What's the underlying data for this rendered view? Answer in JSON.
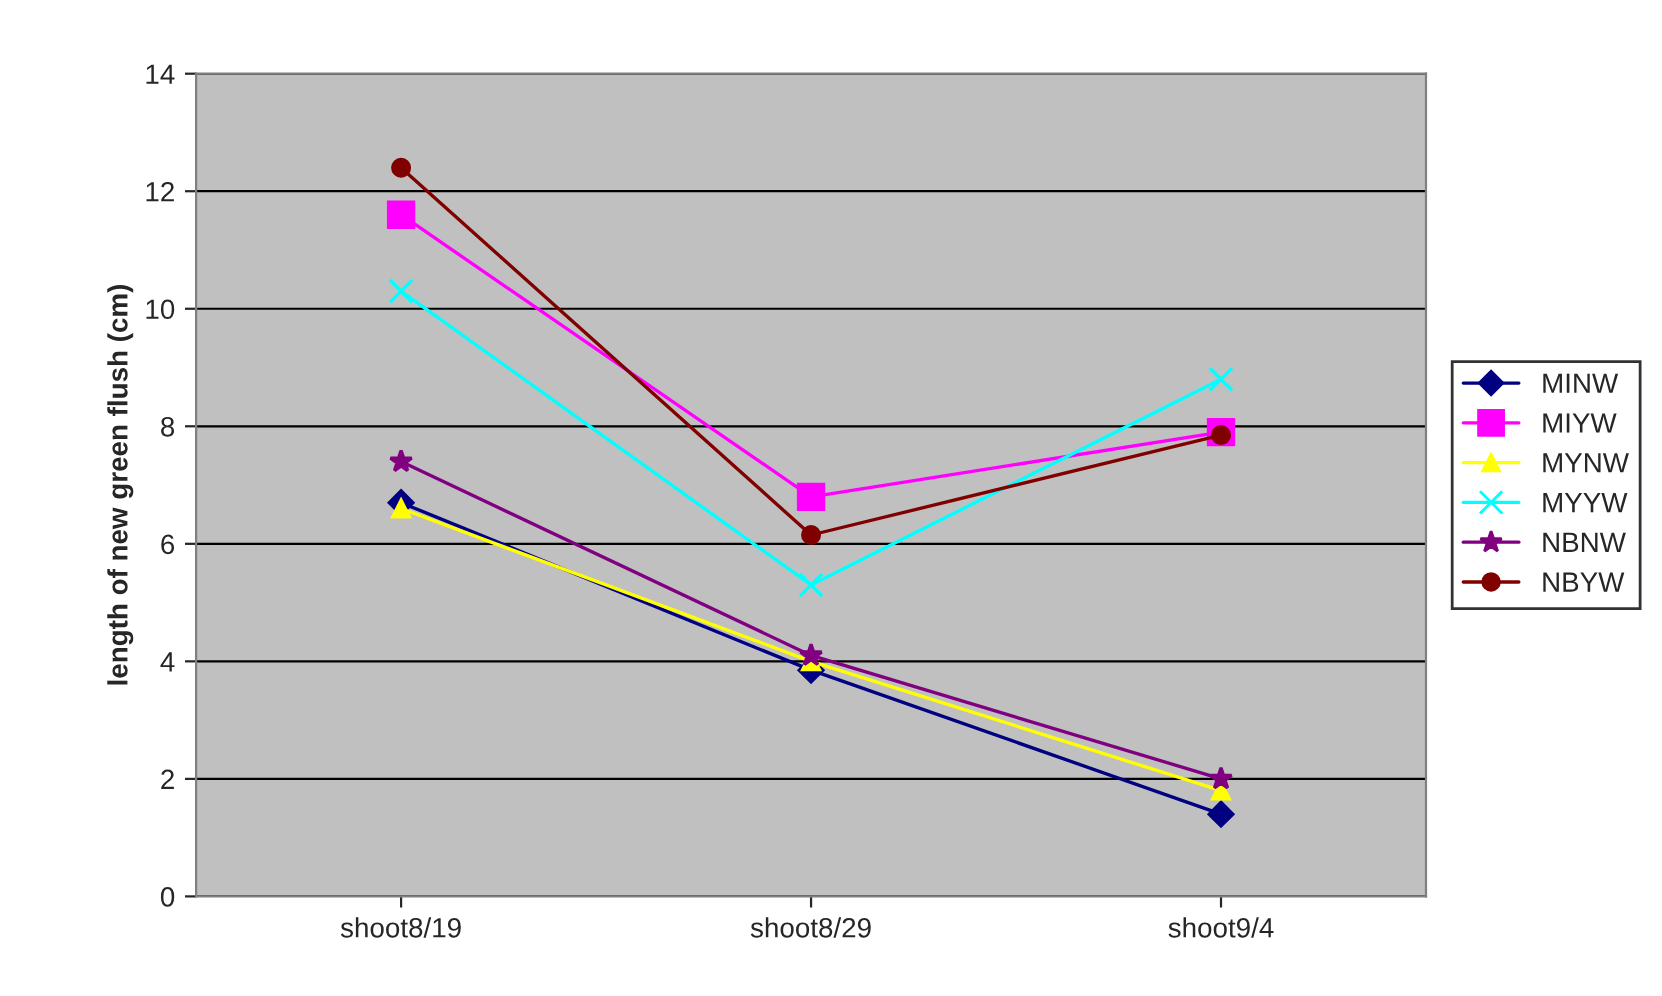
{
  "chart_data": {
    "type": "line",
    "ylabel": "length of new green flush (cm)",
    "categories": [
      "shoot8/19",
      "shoot8/29",
      "shoot9/4"
    ],
    "ylim": [
      0,
      14
    ],
    "yticks": [
      0,
      2,
      4,
      6,
      8,
      10,
      12,
      14
    ],
    "grid": "y",
    "legend": "right",
    "series": [
      {
        "name": "MINW",
        "color": "#000080",
        "marker": "diamond",
        "values": [
          6.7,
          3.85,
          1.4
        ]
      },
      {
        "name": "MIYW",
        "color": "#ff00ff",
        "marker": "square",
        "values": [
          11.6,
          6.8,
          7.9
        ]
      },
      {
        "name": "MYNW",
        "color": "#ffff00",
        "marker": "triangle",
        "values": [
          6.6,
          4.0,
          1.8
        ]
      },
      {
        "name": "MYYW",
        "color": "#00ffff",
        "marker": "cross",
        "values": [
          10.3,
          5.3,
          8.8
        ]
      },
      {
        "name": "NBNW",
        "color": "#800080",
        "marker": "star",
        "values": [
          7.4,
          4.1,
          2.0
        ]
      },
      {
        "name": "NBYW",
        "color": "#800000",
        "marker": "circle",
        "values": [
          12.4,
          6.15,
          7.85
        ]
      }
    ]
  }
}
